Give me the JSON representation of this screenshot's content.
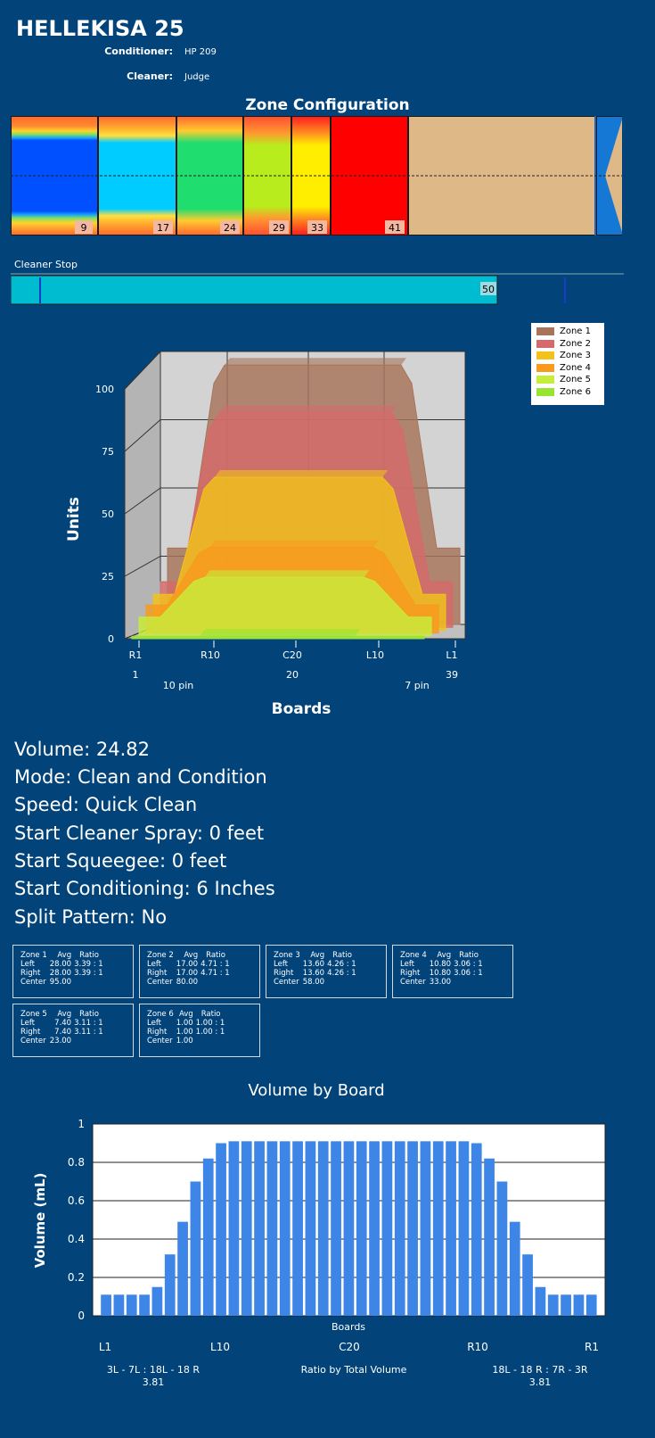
{
  "header": {
    "title": "HELLEKISA 25",
    "conditioner_label": "Conditioner:",
    "conditioner_value": "HP 209",
    "cleaner_label": "Cleaner:",
    "cleaner_value": "Judge"
  },
  "zone_config": {
    "title": "Zone Configuration",
    "markers": [
      "9",
      "17",
      "24",
      "29",
      "33",
      "41"
    ]
  },
  "cleaner_stop": {
    "label": "Cleaner Stop",
    "value": "50",
    "value_fraction": 0.833
  },
  "chart_3d": {
    "type": "area",
    "ylabel": "Units",
    "xlabel": "Boards",
    "y_ticks": [
      "0",
      "25",
      "50",
      "75",
      "100"
    ],
    "x_ticks": [
      "R1",
      "R10",
      "C20",
      "L10",
      "L1"
    ],
    "x_sub_ticks": [
      "1",
      "20",
      "39"
    ],
    "pin_labels": [
      "10 pin",
      "7 pin"
    ],
    "legend": [
      "Zone 1",
      "Zone 2",
      "Zone 3",
      "Zone 4",
      "Zone 5",
      "Zone 6"
    ],
    "colors": [
      "#a8745a",
      "#d46a6a",
      "#f2c21a",
      "#f79a1e",
      "#c8ec3a",
      "#98e430"
    ],
    "center_units": [
      95,
      80,
      58,
      33,
      23,
      1
    ],
    "edge_units": [
      28,
      17,
      13.6,
      10.8,
      7.4,
      1
    ]
  },
  "settings": {
    "volume": "Volume: 24.82",
    "mode": "Mode: Clean and Condition",
    "speed": "Speed: Quick Clean",
    "cleaner_spray": "Start Cleaner Spray: 0 feet",
    "squeegee": "Start Squeegee: 0 feet",
    "conditioning": "Start Conditioning: 6 Inches",
    "split": "Split Pattern: No"
  },
  "zones": [
    {
      "name": "Zone 1",
      "avg_h": "Avg",
      "ratio_h": "Ratio",
      "left_l": "Left",
      "left_avg": "28.00",
      "left_ratio": "3.39 : 1",
      "right_l": "Right",
      "right_avg": "28.00",
      "right_ratio": "3.39 : 1",
      "center_l": "Center",
      "center_avg": "95.00"
    },
    {
      "name": "Zone 2",
      "avg_h": "Avg",
      "ratio_h": "Ratio",
      "left_l": "Left",
      "left_avg": "17.00",
      "left_ratio": "4.71 : 1",
      "right_l": "Right",
      "right_avg": "17.00",
      "right_ratio": "4.71 : 1",
      "center_l": "Center",
      "center_avg": "80.00"
    },
    {
      "name": "Zone 3",
      "avg_h": "Avg",
      "ratio_h": "Ratio",
      "left_l": "Left",
      "left_avg": "13.60",
      "left_ratio": "4.26 : 1",
      "right_l": "Right",
      "right_avg": "13.60",
      "right_ratio": "4.26 : 1",
      "center_l": "Center",
      "center_avg": "58.00"
    },
    {
      "name": "Zone 4",
      "avg_h": "Avg",
      "ratio_h": "Ratio",
      "left_l": "Left",
      "left_avg": "10.80",
      "left_ratio": "3.06 : 1",
      "right_l": "Right",
      "right_avg": "10.80",
      "right_ratio": "3.06 : 1",
      "center_l": "Center",
      "center_avg": "33.00"
    },
    {
      "name": "Zone 5",
      "avg_h": "Avg",
      "ratio_h": "Ratio",
      "left_l": "Left",
      "left_avg": "7.40",
      "left_ratio": "3.11 : 1",
      "right_l": "Right",
      "right_avg": "7.40",
      "right_ratio": "3.11 : 1",
      "center_l": "Center",
      "center_avg": "23.00"
    },
    {
      "name": "Zone 6",
      "avg_h": "Avg",
      "ratio_h": "Ratio",
      "left_l": "Left",
      "left_avg": "1.00",
      "left_ratio": "1.00 : 1",
      "right_l": "Right",
      "right_avg": "1.00",
      "right_ratio": "1.00 : 1",
      "center_l": "Center",
      "center_avg": "1.00"
    }
  ],
  "chart_data": {
    "type": "bar",
    "title": "Volume by Board",
    "xlabel": "Boards",
    "ylabel": "Volume (mL)",
    "ylim": [
      0,
      1
    ],
    "y_ticks": [
      "0",
      "0.2",
      "0.4",
      "0.6",
      "0.8",
      "1"
    ],
    "x_tick_labels": [
      "L1",
      "L10",
      "C20",
      "R10",
      "R1"
    ],
    "values": [
      0.11,
      0.11,
      0.11,
      0.11,
      0.15,
      0.32,
      0.49,
      0.7,
      0.82,
      0.9,
      0.91,
      0.91,
      0.91,
      0.91,
      0.91,
      0.91,
      0.91,
      0.91,
      0.91,
      0.91,
      0.91,
      0.91,
      0.91,
      0.91,
      0.91,
      0.91,
      0.91,
      0.91,
      0.91,
      0.9,
      0.82,
      0.7,
      0.49,
      0.32,
      0.15,
      0.11,
      0.11,
      0.11,
      0.11
    ],
    "bar_color": "#3d86e8",
    "footer_left": "3L - 7L : 18L - 18 R",
    "footer_left_value": "3.81",
    "footer_center": "Ratio by Total Volume",
    "footer_right": "18L - 18 R : 7R - 3R",
    "footer_right_value": "3.81"
  }
}
